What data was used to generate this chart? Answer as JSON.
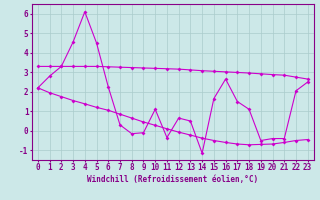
{
  "x": [
    0,
    1,
    2,
    3,
    4,
    5,
    6,
    7,
    8,
    9,
    10,
    11,
    12,
    13,
    14,
    15,
    16,
    17,
    18,
    19,
    20,
    21,
    22,
    23
  ],
  "y_zigzag": [
    2.2,
    2.8,
    3.3,
    4.55,
    6.1,
    4.5,
    2.25,
    0.3,
    -0.15,
    -0.1,
    1.1,
    -0.35,
    0.65,
    0.5,
    -1.15,
    1.65,
    2.65,
    1.5,
    1.1,
    -0.5,
    -0.4,
    -0.4,
    2.05,
    2.5
  ],
  "y_trend1": [
    3.3,
    3.3,
    3.3,
    3.3,
    3.3,
    3.3,
    3.28,
    3.26,
    3.24,
    3.22,
    3.2,
    3.18,
    3.16,
    3.12,
    3.08,
    3.05,
    3.02,
    2.99,
    2.96,
    2.92,
    2.88,
    2.85,
    2.75,
    2.65
  ],
  "y_trend2": [
    2.2,
    1.95,
    1.75,
    1.55,
    1.38,
    1.2,
    1.05,
    0.85,
    0.65,
    0.45,
    0.28,
    0.1,
    -0.07,
    -0.22,
    -0.38,
    -0.5,
    -0.6,
    -0.68,
    -0.72,
    -0.7,
    -0.68,
    -0.6,
    -0.5,
    -0.45
  ],
  "background": "#cce8e8",
  "grid_color": "#aacccc",
  "line_color": "#cc00cc",
  "xlabel": "Windchill (Refroidissement éolien,°C)",
  "ylim": [
    -1.5,
    6.5
  ],
  "xlim": [
    -0.5,
    23.5
  ],
  "yticks": [
    -1,
    0,
    1,
    2,
    3,
    4,
    5,
    6
  ],
  "xticks": [
    0,
    1,
    2,
    3,
    4,
    5,
    6,
    7,
    8,
    9,
    10,
    11,
    12,
    13,
    14,
    15,
    16,
    17,
    18,
    19,
    20,
    21,
    22,
    23
  ],
  "tick_color": "#880088",
  "spine_color": "#880088"
}
